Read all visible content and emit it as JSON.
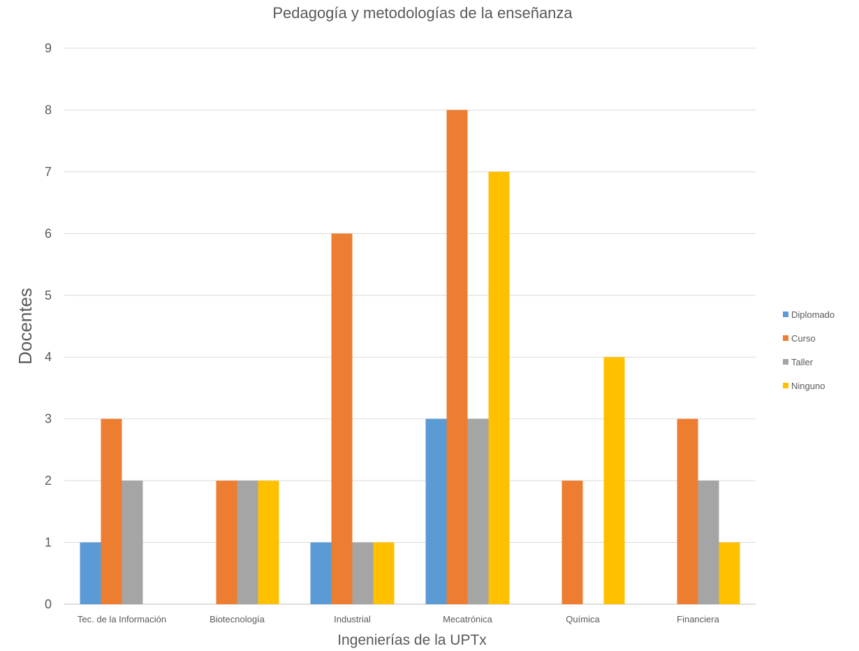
{
  "chart_data": {
    "type": "bar",
    "title": "Pedagogía y metodologías de la enseñanza",
    "xlabel": "Ingenierías de la UPTx",
    "ylabel": "Docentes",
    "categories": [
      "Tec. de la Información",
      "Biotecnología",
      "Industrial",
      "Mecatrónica",
      "Química",
      "Financiera"
    ],
    "series": [
      {
        "name": "Diplomado",
        "color": "#5b9bd5",
        "values": [
          1,
          0,
          1,
          3,
          0,
          0
        ]
      },
      {
        "name": "Curso",
        "color": "#ed7d31",
        "values": [
          3,
          2,
          6,
          8,
          2,
          3
        ]
      },
      {
        "name": "Taller",
        "color": "#a5a5a5",
        "values": [
          2,
          2,
          1,
          3,
          0,
          2
        ]
      },
      {
        "name": "Ninguno",
        "color": "#ffc000",
        "values": [
          0,
          2,
          1,
          7,
          4,
          1
        ]
      }
    ],
    "ylim": [
      0,
      9
    ],
    "yticks": [
      0,
      1,
      2,
      3,
      4,
      5,
      6,
      7,
      8,
      9
    ],
    "grid": true,
    "legend_position": "right"
  }
}
